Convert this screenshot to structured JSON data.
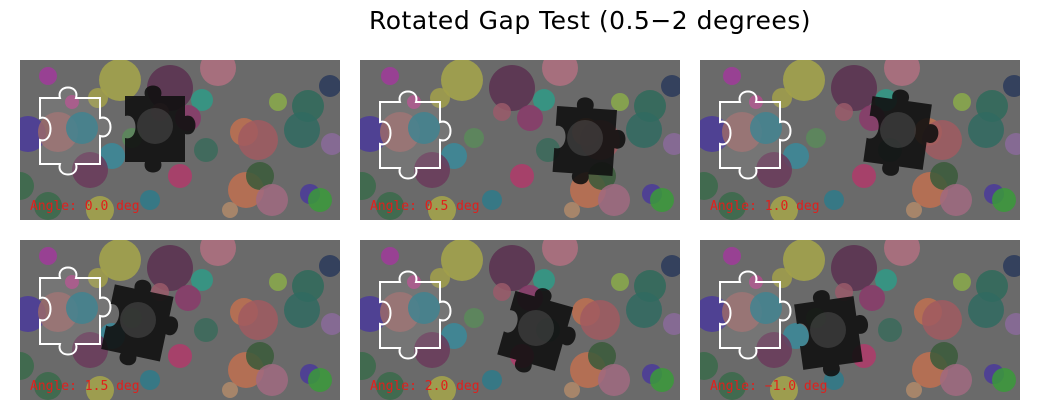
{
  "title": "Rotated Gap Test (0.5−2 degrees)",
  "colors": {
    "background": "#6a6a6a",
    "outline": "#ffffff",
    "label": "#e0201c",
    "piece": "#111111"
  },
  "panels": [
    {
      "label": "Angle: 0.0 deg"
    },
    {
      "label": "Angle: 0.5 deg"
    },
    {
      "label": "Angle: 1.0 deg"
    },
    {
      "label": "Angle: 1.5 deg"
    },
    {
      "label": "Angle: 2.0 deg"
    },
    {
      "label": "Angle: −1.0 deg"
    }
  ]
}
